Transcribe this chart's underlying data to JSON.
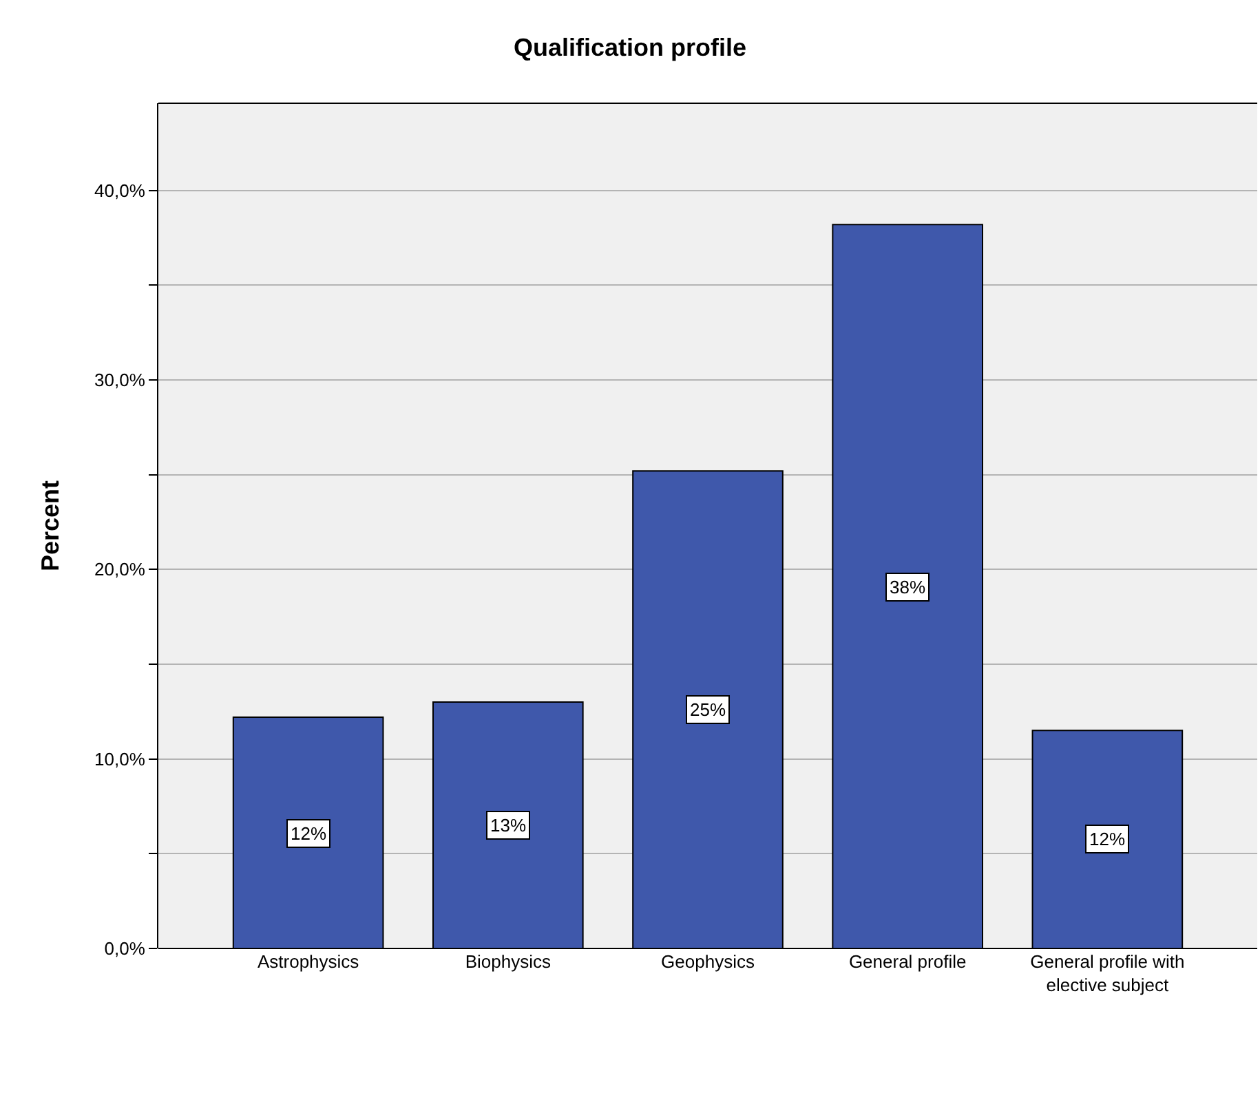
{
  "chart_data": {
    "type": "bar",
    "title": "Qualification profile",
    "ylabel": "Percent",
    "categories": [
      "Astrophysics",
      "Biophysics",
      "Geophysics",
      "General profile",
      "General profile with elective subject"
    ],
    "values": [
      12.2,
      13,
      25.2,
      38.2,
      11.5
    ],
    "value_labels": [
      "12%",
      "13%",
      "25%",
      "38%",
      "12%"
    ],
    "color": "#3f58ab",
    "ylim": [
      0,
      44.6
    ],
    "yticks": [
      {
        "value": 0,
        "label": "0,0%"
      },
      {
        "value": 5,
        "label": null
      },
      {
        "value": 10,
        "label": "10,0%"
      },
      {
        "value": 15,
        "label": null
      },
      {
        "value": 20,
        "label": "20,0%"
      },
      {
        "value": 25,
        "label": null
      },
      {
        "value": 30,
        "label": "30,0%"
      },
      {
        "value": 35,
        "label": null
      },
      {
        "value": 40,
        "label": "40,0%"
      }
    ],
    "grid": "y"
  }
}
